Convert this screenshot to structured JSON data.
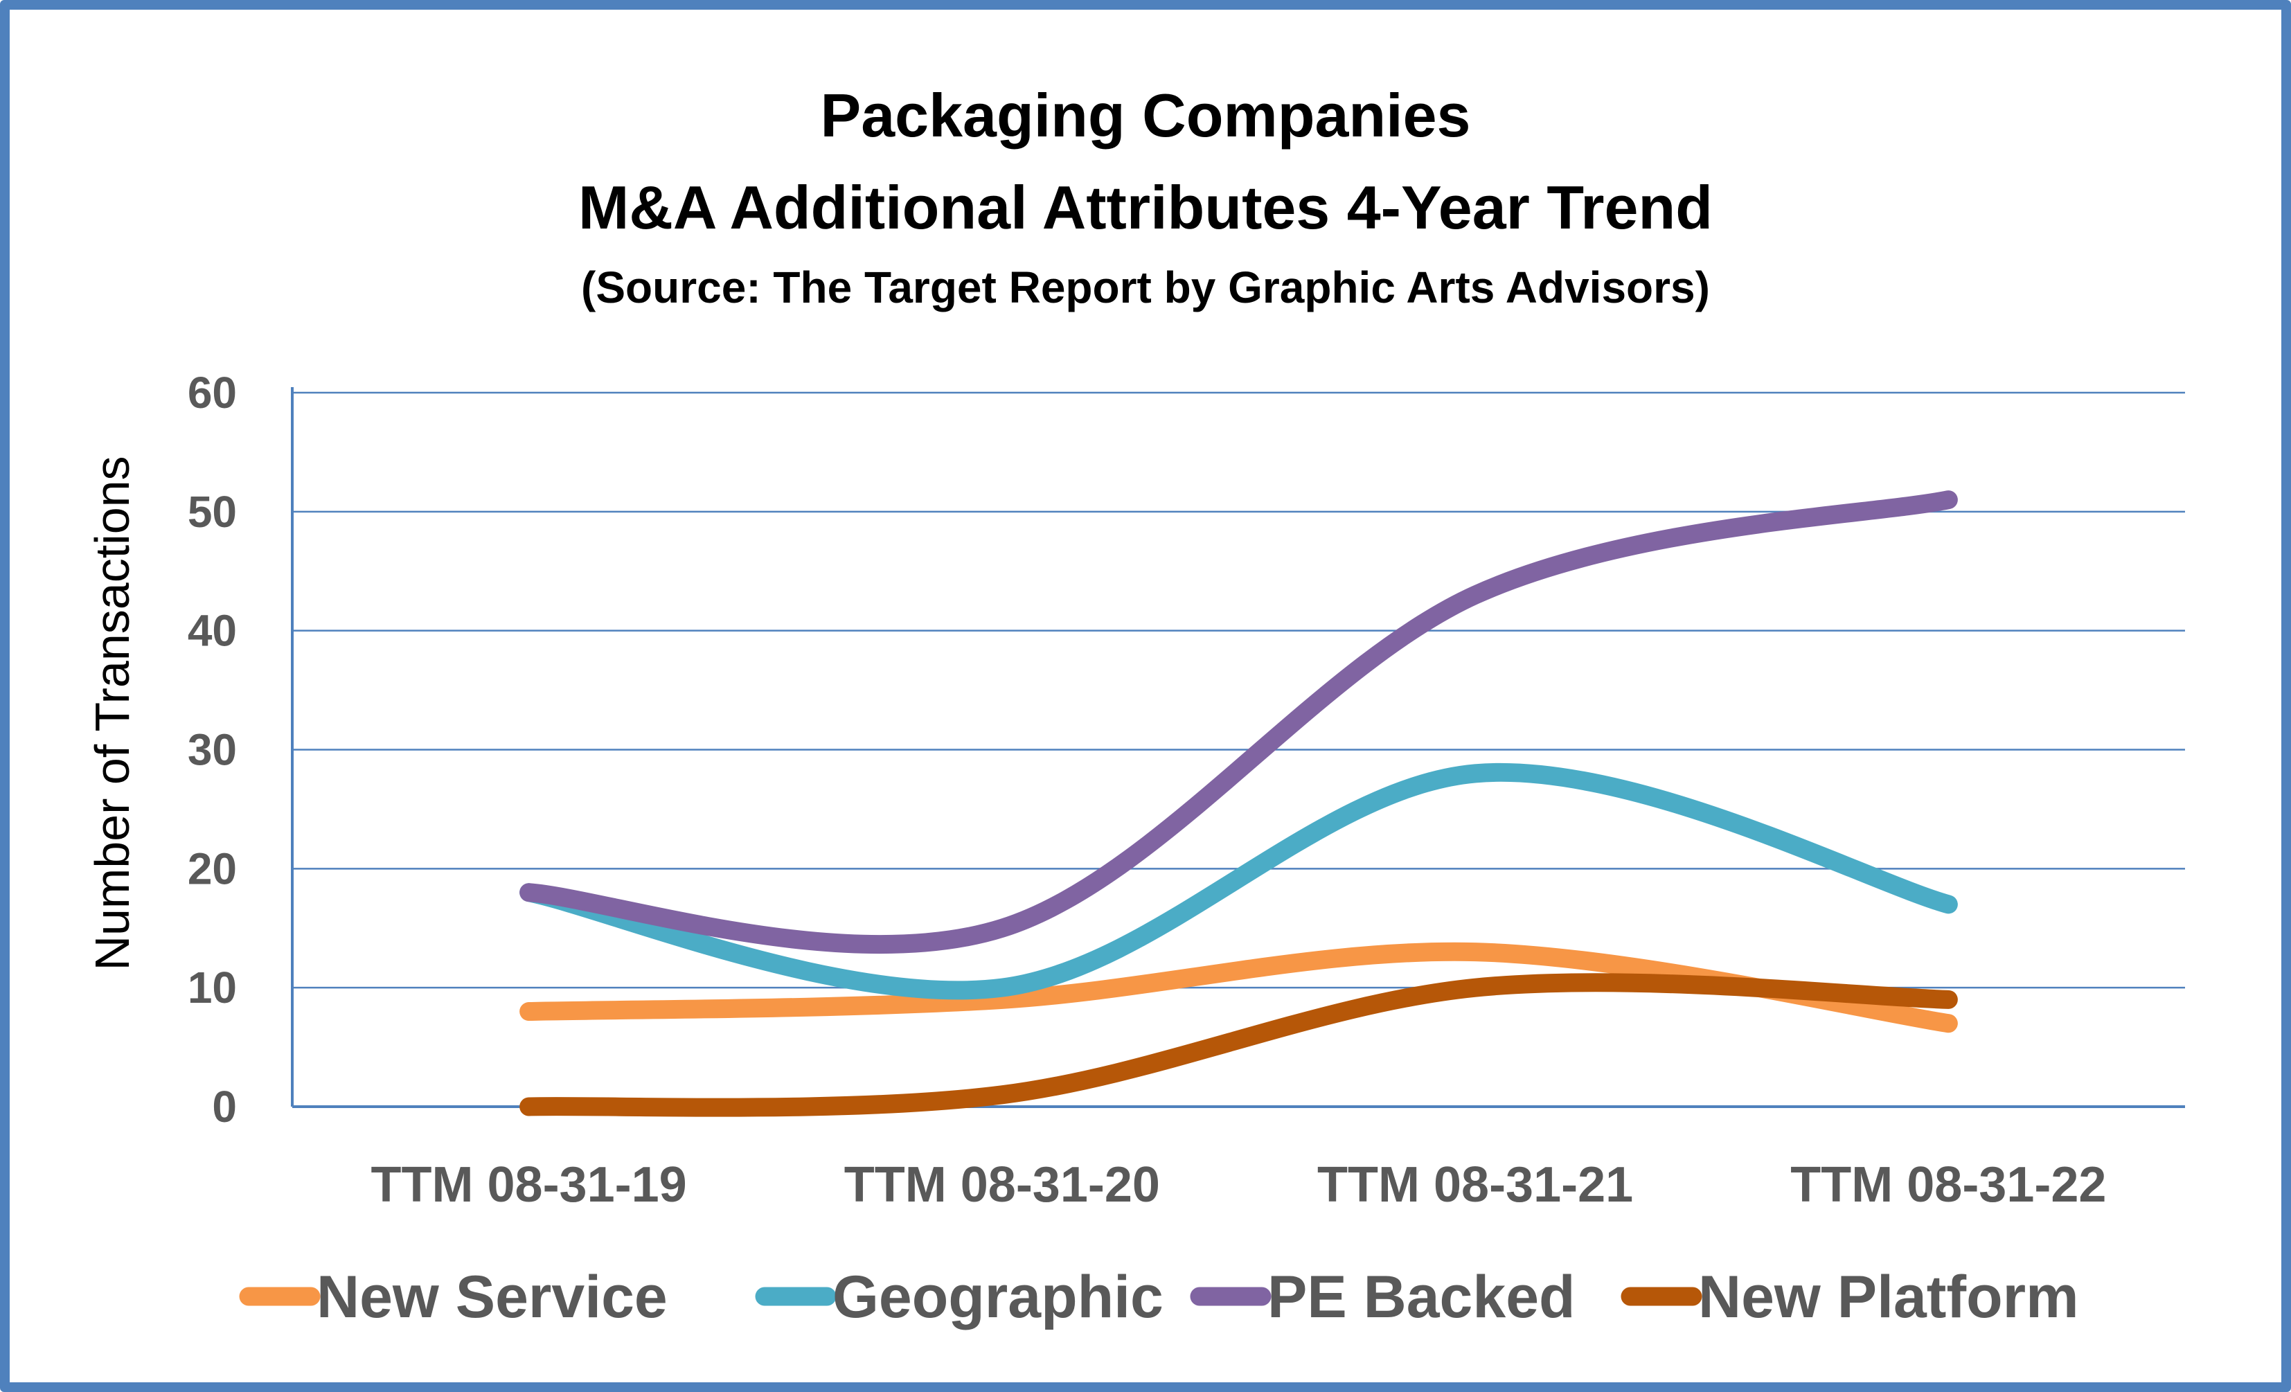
{
  "chart_data": {
    "type": "line",
    "smoothed": true,
    "title": "Packaging Companies",
    "subtitle": "M&A Additional Attributes 4-Year Trend",
    "source": "(Source: The Target Report by Graphic Arts Advisors)",
    "xlabel": "",
    "ylabel": "Number of Transactions",
    "ylim": [
      0,
      60
    ],
    "yticks": [
      0,
      10,
      20,
      30,
      40,
      50,
      60
    ],
    "grid": true,
    "legend_position": "bottom",
    "categories": [
      "TTM 08-31-19",
      "TTM 08-31-20",
      "TTM 08-31-21",
      "TTM 08-31-22"
    ],
    "series": [
      {
        "name": "New Service",
        "color": "#F79646",
        "values": [
          8,
          9,
          13,
          7
        ]
      },
      {
        "name": "Geographic",
        "color": "#4BACC6",
        "values": [
          18,
          10,
          28,
          17
        ]
      },
      {
        "name": "PE Backed",
        "color": "#8064A2",
        "values": [
          18,
          15,
          43,
          51
        ]
      },
      {
        "name": "New Platform",
        "color": "#B65708",
        "values": [
          0,
          1,
          10,
          9
        ]
      }
    ]
  },
  "colors": {
    "frame": "#4F81BD",
    "gridline": "#4F81BD",
    "tick_text": "#595959"
  }
}
